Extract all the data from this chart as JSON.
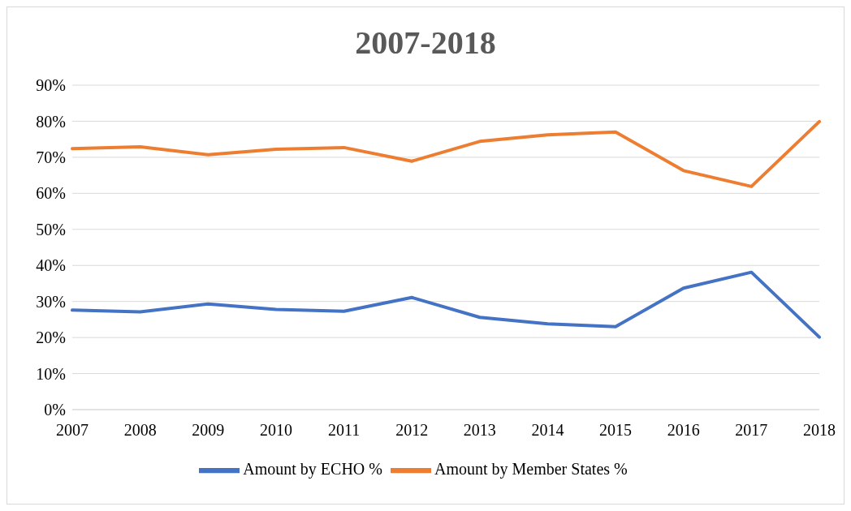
{
  "chart_data": {
    "type": "line",
    "title": "2007-2018",
    "categories": [
      "2007",
      "2008",
      "2009",
      "2010",
      "2011",
      "2012",
      "2013",
      "2014",
      "2015",
      "2016",
      "2017",
      "2018"
    ],
    "series": [
      {
        "name": "Amount by ECHO %",
        "color": "#4472c4",
        "values": [
          27.6,
          27.1,
          29.3,
          27.8,
          27.3,
          31.1,
          25.6,
          23.8,
          23.0,
          33.7,
          38.1,
          20.1
        ]
      },
      {
        "name": "Amount by Member States %",
        "color": "#ed7d31",
        "values": [
          72.4,
          72.9,
          70.7,
          72.2,
          72.7,
          68.9,
          74.4,
          76.2,
          77.0,
          66.3,
          61.9,
          79.9
        ]
      }
    ],
    "ylim": [
      0,
      90
    ],
    "yticks": [
      {
        "value": 0,
        "label": "0%"
      },
      {
        "value": 10,
        "label": "10%"
      },
      {
        "value": 20,
        "label": "20%"
      },
      {
        "value": 30,
        "label": "30%"
      },
      {
        "value": 40,
        "label": "40%"
      },
      {
        "value": 50,
        "label": "50%"
      },
      {
        "value": 60,
        "label": "60%"
      },
      {
        "value": 70,
        "label": "70%"
      },
      {
        "value": 80,
        "label": "80%"
      },
      {
        "value": 90,
        "label": "90%"
      }
    ],
    "grid": "y",
    "legend": "bottom",
    "marker": "none",
    "line_style": "solid"
  }
}
